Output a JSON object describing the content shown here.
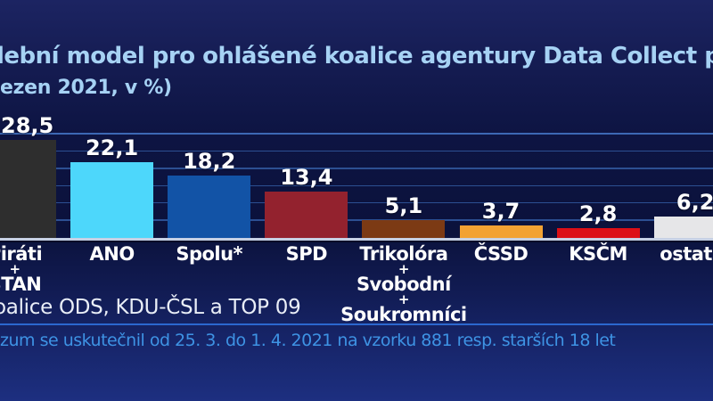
{
  "header": {
    "title": "lební model pro ohlášené koalice agentury Data Collect pro",
    "subtitle": "ezen 2021, v %)"
  },
  "chart_data": {
    "type": "bar",
    "title": "lební model pro ohlášené koalice agentury Data Collect pro",
    "subtitle": "ezen 2021, v %)",
    "categories": [
      "Piráti + STAN",
      "ANO",
      "Spolu*",
      "SPD",
      "Trikolóra + Svobodní + Soukromníci",
      "ČSSD",
      "KSČM",
      "ostatní"
    ],
    "category_lines": [
      [
        "Piráti",
        "+",
        "STAN"
      ],
      [
        "ANO"
      ],
      [
        "Spolu*"
      ],
      [
        "SPD"
      ],
      [
        "Trikolóra",
        "+",
        "Svobodní",
        "+",
        "Soukromníci"
      ],
      [
        "ČSSD"
      ],
      [
        "KSČM"
      ],
      [
        "ostatní"
      ]
    ],
    "values": [
      28.5,
      22.1,
      18.2,
      13.4,
      5.1,
      3.7,
      2.8,
      6.2
    ],
    "value_labels": [
      "28,5",
      "22,1",
      "18,2",
      "13,4",
      "5,1",
      "3,7",
      "2,8",
      "6,2"
    ],
    "colors": [
      "#2e2e2e",
      "#4dd7fb",
      "#1253a6",
      "#93222e",
      "#7c3a14",
      "#f2a233",
      "#dc0f16",
      "#e6e6e8"
    ],
    "xlabel": "",
    "ylabel": "",
    "ylim": [
      0,
      30
    ],
    "gridline_step": 5,
    "grid": true,
    "legend": false
  },
  "footnote": "oalice ODS, KDU-ČSL a TOP 09",
  "footer": {
    "note": "zum se uskutečnil od 25. 3. do 1. 4. 2021 na vzorku 881 resp. starších 18 let"
  },
  "style_colors": {
    "background_top": "#1c2462",
    "background_bottom": "#1d2f80",
    "title_text": "#a6d2f4",
    "value_text": "#ffffff",
    "gridline": "#2c4f92",
    "baseline": "#c6d0e4",
    "separator_line": "#2b67ce",
    "footer_text": "#3e93e4"
  }
}
